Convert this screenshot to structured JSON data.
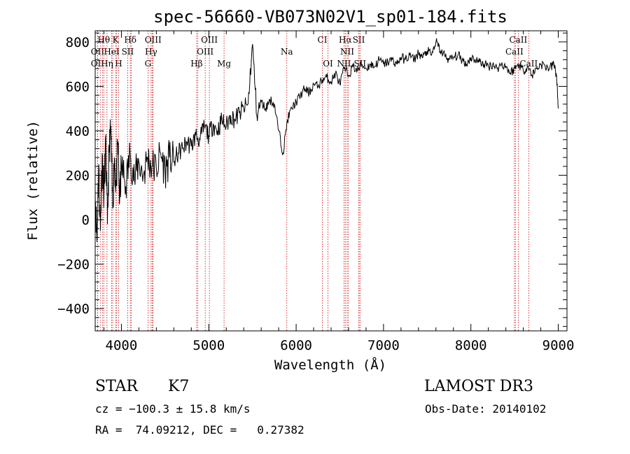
{
  "chart_data": {
    "type": "line",
    "title": "spec-56660-VB073N02V1_sp01-184.fits",
    "xlabel": "Wavelength (Å)",
    "ylabel": "Flux (relative)",
    "xlim": [
      3700,
      9100
    ],
    "ylim": [
      -500,
      850
    ],
    "x_ticks": [
      4000,
      5000,
      6000,
      7000,
      8000,
      9000
    ],
    "x_tick_labels": [
      "4000",
      "5000",
      "6000",
      "7000",
      "8000",
      "9000"
    ],
    "y_ticks": [
      -400,
      -200,
      0,
      200,
      400,
      600,
      800
    ],
    "y_tick_labels": [
      "−400",
      "−200",
      "0",
      "200",
      "400",
      "600",
      "800"
    ],
    "spectrum": {
      "x": [
        3700,
        3720,
        3740,
        3760,
        3780,
        3800,
        3820,
        3840,
        3860,
        3880,
        3900,
        3920,
        3940,
        3960,
        3980,
        4000,
        4050,
        4100,
        4150,
        4200,
        4250,
        4300,
        4350,
        4400,
        4450,
        4500,
        4550,
        4600,
        4650,
        4700,
        4750,
        4800,
        4850,
        4900,
        4950,
        5000,
        5050,
        5100,
        5150,
        5200,
        5250,
        5300,
        5350,
        5400,
        5450,
        5500,
        5550,
        5600,
        5650,
        5700,
        5750,
        5800,
        5850,
        5900,
        5950,
        6000,
        6050,
        6100,
        6150,
        6200,
        6250,
        6300,
        6350,
        6400,
        6450,
        6500,
        6550,
        6600,
        6650,
        6700,
        6750,
        6800,
        6850,
        6900,
        6950,
        7000,
        7050,
        7100,
        7150,
        7200,
        7250,
        7300,
        7350,
        7400,
        7450,
        7500,
        7550,
        7600,
        7650,
        7700,
        7750,
        7800,
        7850,
        7900,
        7950,
        8000,
        8050,
        8100,
        8150,
        8200,
        8250,
        8300,
        8350,
        8400,
        8450,
        8500,
        8550,
        8600,
        8650,
        8700,
        8750,
        8800,
        8850,
        8900,
        8950,
        8980,
        9000
      ],
      "y": [
        150,
        -100,
        250,
        -50,
        300,
        100,
        350,
        -20,
        320,
        400,
        50,
        280,
        150,
        350,
        80,
        250,
        150,
        300,
        180,
        260,
        200,
        280,
        240,
        230,
        300,
        220,
        280,
        260,
        300,
        320,
        350,
        330,
        380,
        360,
        420,
        380,
        430,
        400,
        450,
        420,
        470,
        450,
        480,
        500,
        520,
        790,
        470,
        530,
        500,
        540,
        520,
        400,
        300,
        450,
        500,
        530,
        560,
        590,
        570,
        610,
        600,
        630,
        640,
        620,
        660,
        610,
        680,
        650,
        690,
        670,
        700,
        680,
        700,
        690,
        720,
        700,
        710,
        720,
        700,
        730,
        720,
        740,
        720,
        750,
        730,
        760,
        740,
        800,
        760,
        740,
        720,
        730,
        740,
        720,
        700,
        730,
        720,
        710,
        700,
        690,
        700,
        680,
        700,
        690,
        660,
        680,
        700,
        670,
        690,
        650,
        680,
        700,
        690,
        680,
        700,
        650,
        500
      ]
    },
    "spectral_lines": [
      {
        "label": "Hθ",
        "wavelength": 3798,
        "row": 1
      },
      {
        "label": "K",
        "wavelength": 3934,
        "row": 1
      },
      {
        "label": "Hδ",
        "wavelength": 4102,
        "row": 1
      },
      {
        "label": "OIII",
        "wavelength": 4363,
        "row": 1
      },
      {
        "label": "OIII",
        "wavelength": 5007,
        "row": 1
      },
      {
        "label": "CI",
        "wavelength": 6300,
        "row": 1
      },
      {
        "label": "Hα",
        "wavelength": 6563,
        "row": 1
      },
      {
        "label": "SII",
        "wavelength": 6717,
        "row": 1
      },
      {
        "label": "CaII",
        "wavelength": 8542,
        "row": 1
      },
      {
        "label": "OII",
        "wavelength": 3727,
        "row": 2
      },
      {
        "label": "HeI",
        "wavelength": 3889,
        "row": 2
      },
      {
        "label": "SII",
        "wavelength": 4072,
        "row": 2
      },
      {
        "label": "Hγ",
        "wavelength": 4340,
        "row": 2
      },
      {
        "label": "OIII",
        "wavelength": 4959,
        "row": 2
      },
      {
        "label": "Na",
        "wavelength": 5893,
        "row": 2
      },
      {
        "label": "NII",
        "wavelength": 6584,
        "row": 2
      },
      {
        "label": "CaII",
        "wavelength": 8498,
        "row": 2
      },
      {
        "label": "OII",
        "wavelength": 3727,
        "row": 3
      },
      {
        "label": "Hη",
        "wavelength": 3835,
        "row": 3
      },
      {
        "label": "H",
        "wavelength": 3968,
        "row": 3
      },
      {
        "label": "G",
        "wavelength": 4304,
        "row": 3
      },
      {
        "label": "Hβ",
        "wavelength": 4861,
        "row": 3
      },
      {
        "label": "Mg",
        "wavelength": 5175,
        "row": 3
      },
      {
        "label": "OI",
        "wavelength": 6364,
        "row": 3
      },
      {
        "label": "NII",
        "wavelength": 6548,
        "row": 3
      },
      {
        "label": "SII",
        "wavelength": 6731,
        "row": 3
      },
      {
        "label": "CaII",
        "wavelength": 8662,
        "row": 3
      }
    ],
    "extra_line_markers": [
      3750,
      3771,
      3889,
      3934,
      4102,
      4340,
      4861,
      6584,
      6717,
      8498
    ]
  },
  "info": {
    "class_label": "STAR",
    "subclass": "K7",
    "survey": "LAMOST DR3",
    "cz": "cz = −100.3 ± 15.8 km/s",
    "obs_date": "Obs-Date: 20140102",
    "coords": "RA =  74.09212, DEC =   0.27382"
  }
}
